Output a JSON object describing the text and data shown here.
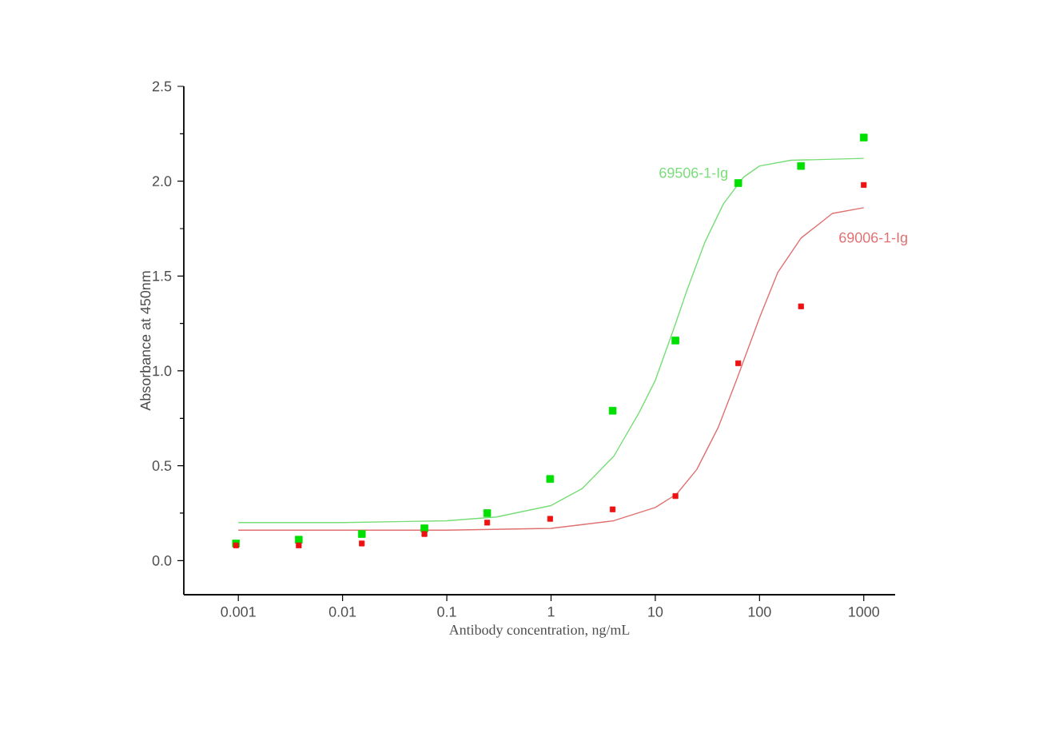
{
  "chart_data": {
    "type": "scatter",
    "xlabel": "Antibody concentration, ng/mL",
    "ylabel": "Absorbance at 450nm",
    "log": "x",
    "xlim": [
      0.0003,
      2000
    ],
    "xticks": [
      0.001,
      0.01,
      0.1,
      1,
      10,
      100,
      1000
    ],
    "ylim": [
      -0.18,
      2.5
    ],
    "yticks": [
      {
        "value": 0,
        "label": "0.0"
      },
      0.5,
      {
        "value": 1,
        "label": "1.0"
      },
      1.5,
      {
        "value": 2,
        "label": "2.0"
      },
      2.5
    ],
    "series": [
      {
        "marker": "square",
        "color": "#00e000",
        "x": [
          0.00095,
          0.0038,
          0.0153,
          0.061,
          0.244,
          0.98,
          3.9,
          15.6,
          62.5,
          250,
          1000
        ],
        "values": [
          0.09,
          0.11,
          0.14,
          0.17,
          0.25,
          0.43,
          0.79,
          1.16,
          1.99,
          2.08,
          2.23
        ]
      },
      {
        "marker": "square",
        "color": "#ee1111",
        "x": [
          0.00095,
          0.0038,
          0.0153,
          0.061,
          0.244,
          0.98,
          3.9,
          15.6,
          62.5,
          250,
          1000
        ],
        "values": [
          0.08,
          0.08,
          0.09,
          0.14,
          0.2,
          0.22,
          0.27,
          0.34,
          1.04,
          1.34,
          1.98
        ]
      },
      {
        "type": "line",
        "name": "69506-1-Ig",
        "marker": "none",
        "line_style": "solid",
        "color": "#77dd77",
        "x": [
          0.001,
          0.01,
          0.1,
          0.3,
          1,
          2,
          4,
          7,
          10,
          15,
          20,
          30,
          45,
          70,
          100,
          200,
          1000
        ],
        "values": [
          0.2,
          0.2,
          0.21,
          0.23,
          0.29,
          0.38,
          0.55,
          0.78,
          0.95,
          1.22,
          1.42,
          1.68,
          1.88,
          2.02,
          2.08,
          2.11,
          2.12
        ]
      },
      {
        "type": "line",
        "name": "69006-1-Ig",
        "marker": "none",
        "line_style": "solid",
        "color": "#e07070",
        "x": [
          0.001,
          0.1,
          1,
          4,
          10,
          16,
          25,
          40,
          60,
          100,
          150,
          250,
          500,
          1000
        ],
        "values": [
          0.16,
          0.16,
          0.17,
          0.21,
          0.28,
          0.35,
          0.48,
          0.7,
          0.95,
          1.28,
          1.52,
          1.7,
          1.83,
          1.86
        ]
      }
    ]
  }
}
